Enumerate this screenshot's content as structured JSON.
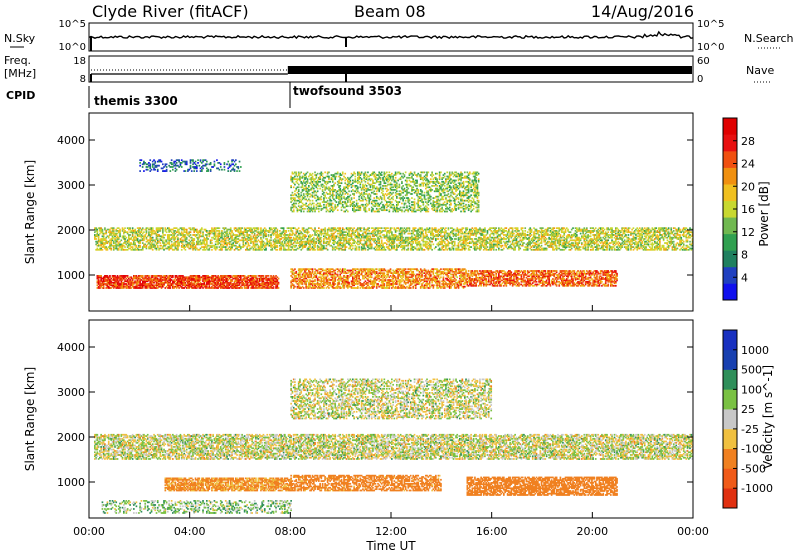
{
  "header": {
    "station": "Clyde River (fitACF)",
    "beam": "Beam 08",
    "date": "14/Aug/2016"
  },
  "strips": {
    "nsky_label": "N.Sky",
    "nsky_ticks": [
      "10^5",
      "10^0"
    ],
    "nsearch_label": "N.Search",
    "nsearch_ticks": [
      "10^5",
      "10^0"
    ],
    "freq_label_1": "Freq.",
    "freq_label_2": "[MHz]",
    "freq_ticks": [
      "18",
      "8"
    ],
    "nave_label": "Nave",
    "nave_ticks": [
      "60",
      "0"
    ],
    "cpid_label": "CPID",
    "cpid_segments": [
      {
        "name": "themis 3300",
        "start_hour": 0,
        "end_hour": 7.9
      },
      {
        "name": "twofsound 3503",
        "start_hour": 7.9,
        "end_hour": 24
      }
    ]
  },
  "chart_data": [
    {
      "type": "heatmap",
      "name": "power",
      "xlabel": "Time UT",
      "ylabel": "Slant Range [km]",
      "xlim": [
        0,
        24
      ],
      "ylim": [
        200,
        4600
      ],
      "y_ticks": [
        "4000",
        "3000",
        "2000",
        "1000"
      ],
      "colorbar_label": "Power [dB]",
      "colorbar_ticks": [
        "28",
        "24",
        "20",
        "16",
        "12",
        "8",
        "4"
      ],
      "colorbar_range": [
        0,
        32
      ],
      "bands": [
        {
          "t": [
            0.2,
            24
          ],
          "r": [
            1550,
            2050
          ],
          "db": 16,
          "density": 0.55
        },
        {
          "t": [
            0.3,
            7.5
          ],
          "r": [
            700,
            1000
          ],
          "db": 26,
          "density": 0.8
        },
        {
          "t": [
            8,
            15
          ],
          "r": [
            700,
            1150
          ],
          "db": 22,
          "density": 0.6
        },
        {
          "t": [
            15,
            21
          ],
          "r": [
            750,
            1100
          ],
          "db": 24,
          "density": 0.65
        },
        {
          "t": [
            8,
            15.5
          ],
          "r": [
            2400,
            3300
          ],
          "db": 14,
          "density": 0.4
        },
        {
          "t": [
            2,
            6
          ],
          "r": [
            3300,
            3550
          ],
          "db": 6,
          "density": 0.3
        }
      ]
    },
    {
      "type": "heatmap",
      "name": "velocity",
      "xlabel": "Time UT",
      "ylabel": "Slant Range [km]",
      "xlim": [
        0,
        24
      ],
      "ylim": [
        200,
        4600
      ],
      "x_ticks": [
        "00:00",
        "04:00",
        "08:00",
        "12:00",
        "16:00",
        "20:00",
        "00:00"
      ],
      "y_ticks": [
        "4000",
        "3000",
        "2000",
        "1000"
      ],
      "colorbar_label": "Velocity [m s^-1]",
      "colorbar_ticks": [
        "1000",
        "500",
        "100",
        "25",
        "-25",
        "-100",
        "-500",
        "-1000"
      ],
      "bands": [
        {
          "t": [
            0.2,
            24
          ],
          "r": [
            1500,
            2050
          ],
          "v": 0,
          "density": 0.6
        },
        {
          "t": [
            3,
            8
          ],
          "r": [
            800,
            1100
          ],
          "v": -150,
          "density": 0.75
        },
        {
          "t": [
            8,
            14
          ],
          "r": [
            800,
            1150
          ],
          "v": -200,
          "density": 0.6
        },
        {
          "t": [
            15,
            21
          ],
          "r": [
            700,
            1100
          ],
          "v": -300,
          "density": 0.7
        },
        {
          "t": [
            8,
            16
          ],
          "r": [
            2400,
            3300
          ],
          "v": 0,
          "density": 0.45
        },
        {
          "t": [
            0.5,
            8
          ],
          "r": [
            300,
            600
          ],
          "v": 60,
          "density": 0.3
        }
      ]
    }
  ]
}
